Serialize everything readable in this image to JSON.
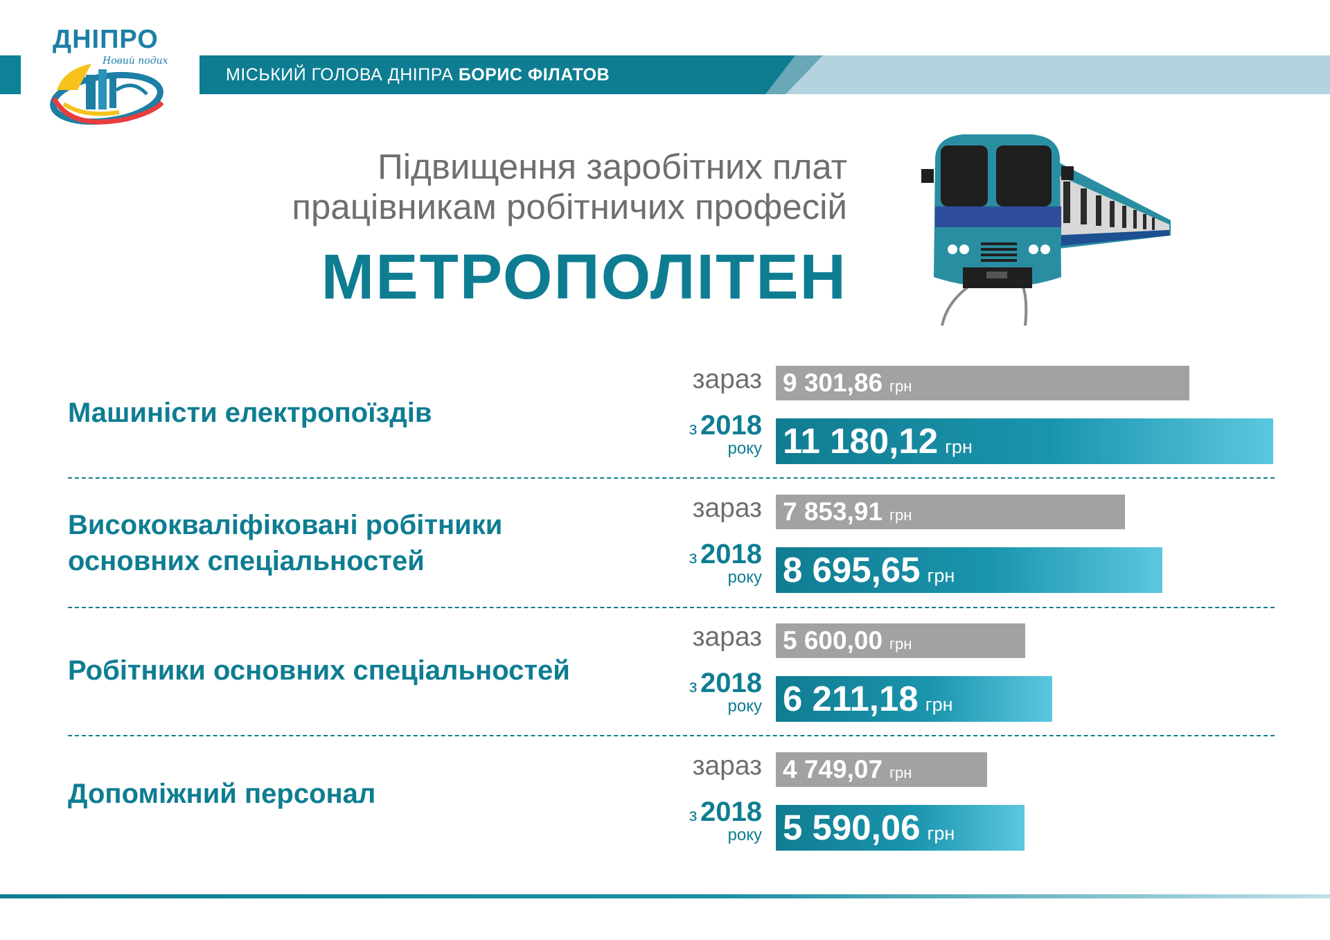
{
  "header": {
    "logo_text": "ДНІПРО",
    "logo_script": "Новий подих",
    "banner_prefix": "МІСЬКИЙ ГОЛОВА ДНІПРА",
    "banner_name": "БОРИС ФІЛАТОВ"
  },
  "subtitle_line1": "Підвищення заробітних плат",
  "subtitle_line2": "працівникам робітничих професій",
  "main_title": "МЕТРОПОЛІТЕН",
  "labels": {
    "now": "зараз",
    "future_prefix": "з",
    "future_year": "2018",
    "future_suffix": "року",
    "currency": "грн"
  },
  "colors": {
    "brand_teal": "#0e7d92",
    "bar_gray": "#a2a2a2",
    "text_gray": "#6d6e71"
  },
  "chart_data": {
    "type": "bar",
    "categories": [
      "Машиністи електропоїздів",
      "Висококваліфіковані робітники основних спеціальностей",
      "Робітники основних спеціальностей",
      "Допоміжний персонал"
    ],
    "series": [
      {
        "name": "зараз",
        "values": [
          9301.86,
          7853.91,
          5600.0,
          4749.07
        ],
        "display": [
          "9 301,86",
          "7 853,91",
          "5 600,00",
          "4 749,07"
        ]
      },
      {
        "name": "з 2018 року",
        "values": [
          11180.12,
          8695.65,
          6211.18,
          5590.06
        ],
        "display": [
          "11 180,12",
          "8 695,65",
          "6 211,18",
          "5 590,06"
        ]
      }
    ],
    "unit": "грн",
    "orientation": "horizontal"
  },
  "rows": [
    {
      "label_lines": [
        "Машиністи електропоїздів"
      ]
    },
    {
      "label_lines": [
        "Висококваліфіковані робітники",
        "основних спеціальностей"
      ]
    },
    {
      "label_lines": [
        "Робітники основних спеціальностей"
      ]
    },
    {
      "label_lines": [
        "Допоміжний персонал"
      ]
    }
  ]
}
